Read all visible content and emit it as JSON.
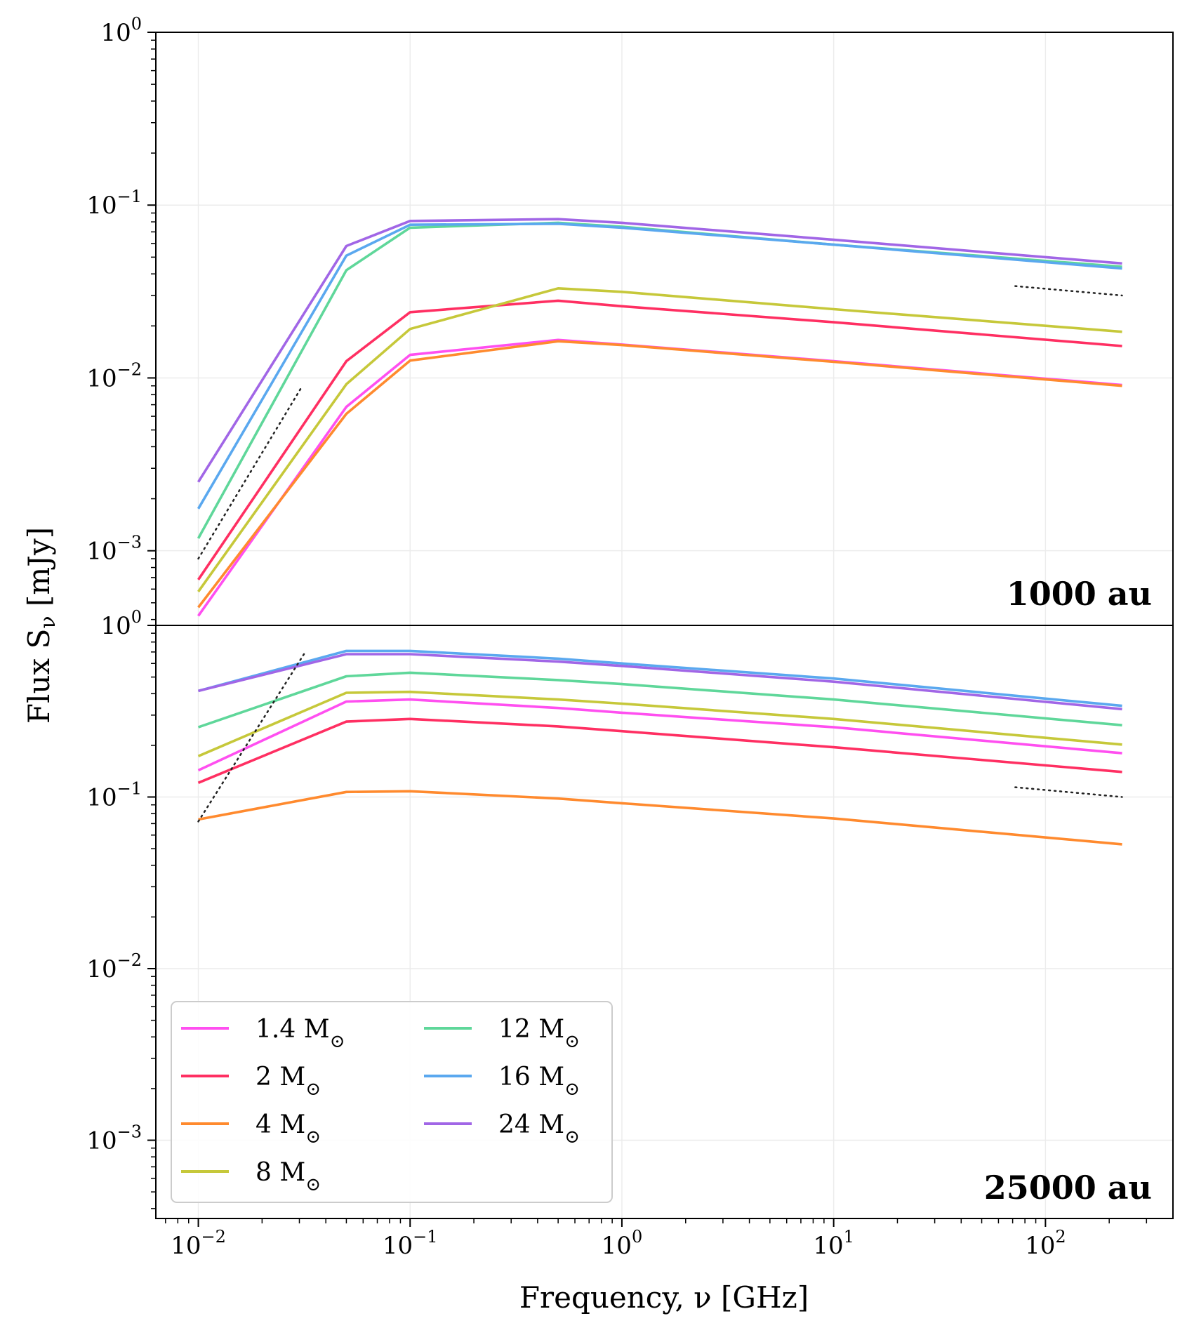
{
  "chart_data": [
    {
      "type": "line",
      "panel_label": "1000 au",
      "xscale": "log",
      "yscale": "log",
      "xlim": [
        0.0063,
        400
      ],
      "ylim": [
        0.00037,
        1
      ],
      "x": [
        0.01,
        0.05,
        0.1,
        0.5,
        1,
        10,
        230
      ],
      "series": [
        {
          "name": "1.4 M",
          "color": "#ff4ff0",
          "values": [
            0.00042,
            0.0068,
            0.0136,
            0.0166,
            0.0156,
            0.0125,
            0.0091
          ]
        },
        {
          "name": "2 M",
          "color": "#ff2f62",
          "values": [
            0.00068,
            0.0125,
            0.024,
            0.028,
            0.026,
            0.021,
            0.0153
          ]
        },
        {
          "name": "4 M",
          "color": "#ff8a2e",
          "values": [
            0.00047,
            0.0062,
            0.0126,
            0.0163,
            0.0155,
            0.0124,
            0.009
          ]
        },
        {
          "name": "8 M",
          "color": "#c6c83a",
          "values": [
            0.00058,
            0.0092,
            0.0192,
            0.033,
            0.0315,
            0.025,
            0.0185
          ]
        },
        {
          "name": "12 M",
          "color": "#5fd79a",
          "values": [
            0.00118,
            0.042,
            0.074,
            0.079,
            0.075,
            0.059,
            0.044
          ]
        },
        {
          "name": "16 M",
          "color": "#5aa8ef",
          "values": [
            0.00175,
            0.051,
            0.077,
            0.078,
            0.074,
            0.059,
            0.043
          ]
        },
        {
          "name": "24 M",
          "color": "#a166e6",
          "values": [
            0.0025,
            0.058,
            0.081,
            0.083,
            0.079,
            0.063,
            0.046
          ]
        }
      ],
      "reference_lines": [
        {
          "x": [
            0.01,
            0.031
          ],
          "y": [
            0.0009,
            0.009
          ]
        },
        {
          "x": [
            72,
            230
          ],
          "y": [
            0.034,
            0.03
          ]
        }
      ]
    },
    {
      "type": "line",
      "panel_label": "25000 au",
      "xscale": "log",
      "yscale": "log",
      "xlim": [
        0.0063,
        400
      ],
      "ylim": [
        0.00035,
        1
      ],
      "x": [
        0.01,
        0.05,
        0.1,
        0.5,
        1,
        10,
        230
      ],
      "series": [
        {
          "name": "1.4 M",
          "color": "#ff4ff0",
          "values": [
            0.143,
            0.36,
            0.37,
            0.33,
            0.31,
            0.255,
            0.18
          ]
        },
        {
          "name": "2 M",
          "color": "#ff2f62",
          "values": [
            0.121,
            0.275,
            0.285,
            0.258,
            0.242,
            0.195,
            0.14
          ]
        },
        {
          "name": "4 M",
          "color": "#ff8a2e",
          "values": [
            0.074,
            0.107,
            0.108,
            0.098,
            0.092,
            0.075,
            0.053
          ]
        },
        {
          "name": "8 M",
          "color": "#c6c83a",
          "values": [
            0.173,
            0.405,
            0.41,
            0.37,
            0.35,
            0.285,
            0.202
          ]
        },
        {
          "name": "12 M",
          "color": "#5fd79a",
          "values": [
            0.255,
            0.505,
            0.53,
            0.48,
            0.455,
            0.37,
            0.262
          ]
        },
        {
          "name": "16 M",
          "color": "#5aa8ef",
          "values": [
            0.415,
            0.71,
            0.71,
            0.64,
            0.6,
            0.49,
            0.34
          ]
        },
        {
          "name": "24 M",
          "color": "#a166e6",
          "values": [
            0.415,
            0.68,
            0.68,
            0.615,
            0.58,
            0.47,
            0.325
          ]
        }
      ],
      "reference_lines": [
        {
          "x": [
            0.01,
            0.032
          ],
          "y": [
            0.072,
            0.7
          ]
        },
        {
          "x": [
            72,
            230
          ],
          "y": [
            0.114,
            0.1
          ]
        }
      ]
    }
  ],
  "axes": {
    "xlabel": "Frequency, ν [GHz]",
    "ylabel": "Flux S",
    "ylabel_sub": "ν",
    "ylabel_unit": " [mJy]",
    "x_ticks": [
      {
        "base": "10",
        "exp": "−2",
        "value": 0.01
      },
      {
        "base": "10",
        "exp": "−1",
        "value": 0.1
      },
      {
        "base": "10",
        "exp": "0",
        "value": 1
      },
      {
        "base": "10",
        "exp": "1",
        "value": 10
      },
      {
        "base": "10",
        "exp": "2",
        "value": 100
      }
    ],
    "y_ticks_top": [
      {
        "base": "10",
        "exp": "0",
        "value": 1
      },
      {
        "base": "10",
        "exp": "−1",
        "value": 0.1
      },
      {
        "base": "10",
        "exp": "−2",
        "value": 0.01
      },
      {
        "base": "10",
        "exp": "−3",
        "value": 0.001
      }
    ],
    "y_ticks_bottom": [
      {
        "base": "10",
        "exp": "0",
        "value": 1
      },
      {
        "base": "10",
        "exp": "−1",
        "value": 0.1
      },
      {
        "base": "10",
        "exp": "−2",
        "value": 0.01
      },
      {
        "base": "10",
        "exp": "−3",
        "value": 0.001
      }
    ]
  },
  "legend": {
    "location": "lower-left",
    "unit_symbol": "⊙",
    "entries": [
      {
        "label": "1.4 M",
        "color": "#ff4ff0"
      },
      {
        "label": "12 M",
        "color": "#5fd79a"
      },
      {
        "label": "2 M",
        "color": "#ff2f62"
      },
      {
        "label": "16 M",
        "color": "#5aa8ef"
      },
      {
        "label": "4 M",
        "color": "#ff8a2e"
      },
      {
        "label": "24 M",
        "color": "#a166e6"
      },
      {
        "label": "8 M",
        "color": "#c6c83a"
      }
    ]
  }
}
